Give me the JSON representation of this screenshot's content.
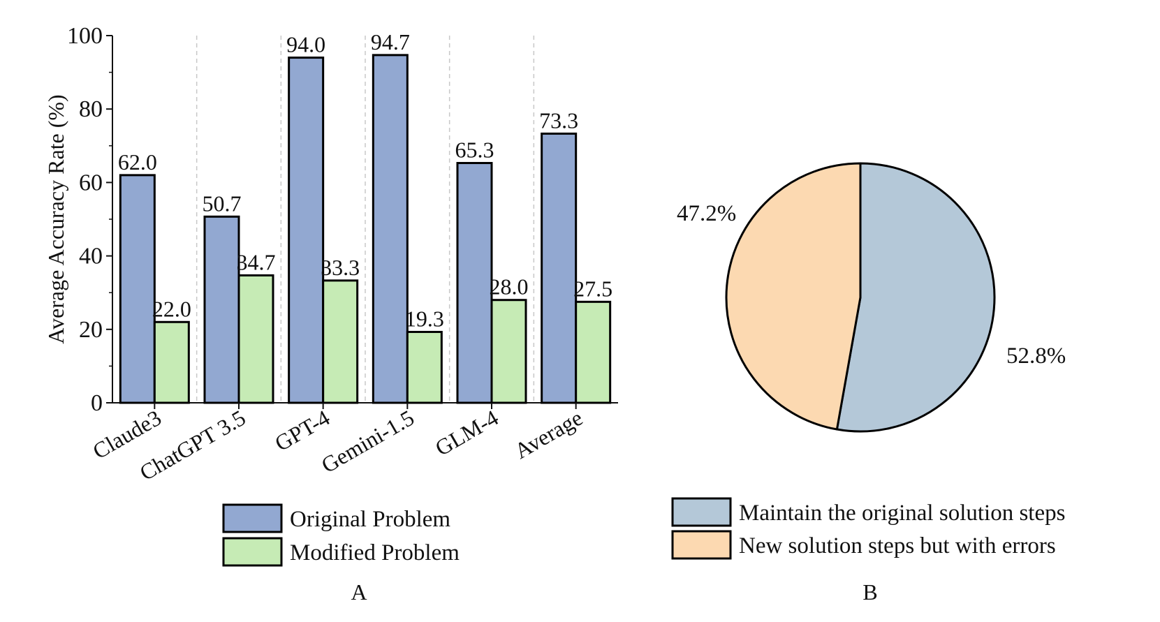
{
  "colors": {
    "original": "#92a8d1",
    "modified": "#c6ebb5",
    "maintain": "#b4c8d8",
    "new_errors": "#fcd9b1",
    "stroke": "#000000",
    "grid": "#c8c8c8"
  },
  "chart_data": [
    {
      "type": "bar",
      "panel_label": "A",
      "ylabel": "Average Accuracy Rate (%)",
      "xlabel": "",
      "ylim": [
        0,
        100
      ],
      "yticks": [
        0,
        20,
        40,
        60,
        80,
        100
      ],
      "grid": "vertical dashed separators between groups",
      "legend_position": "bottom",
      "categories": [
        "Claude3",
        "ChatGPT 3.5",
        "GPT-4",
        "Gemini-1.5",
        "GLM-4",
        "Average"
      ],
      "series": [
        {
          "name": "Original Problem",
          "values": [
            62.0,
            50.7,
            94.0,
            94.7,
            65.3,
            73.3
          ],
          "labels": [
            "62.0",
            "50.7",
            "94.0",
            "94.7",
            "65.3",
            "73.3"
          ]
        },
        {
          "name": "Modified Problem",
          "values": [
            22.0,
            34.7,
            33.3,
            19.3,
            28.0,
            27.5
          ],
          "labels": [
            "22.0",
            "34.7",
            "33.3",
            "19.3",
            "28.0",
            "27.5"
          ]
        }
      ]
    },
    {
      "type": "pie",
      "panel_label": "B",
      "legend_position": "bottom",
      "slices": [
        {
          "name": "Maintain the original solution steps",
          "value": 52.8,
          "label": "52.8%"
        },
        {
          "name": "New solution steps but with errors",
          "value": 47.2,
          "label": "47.2%"
        }
      ]
    }
  ]
}
